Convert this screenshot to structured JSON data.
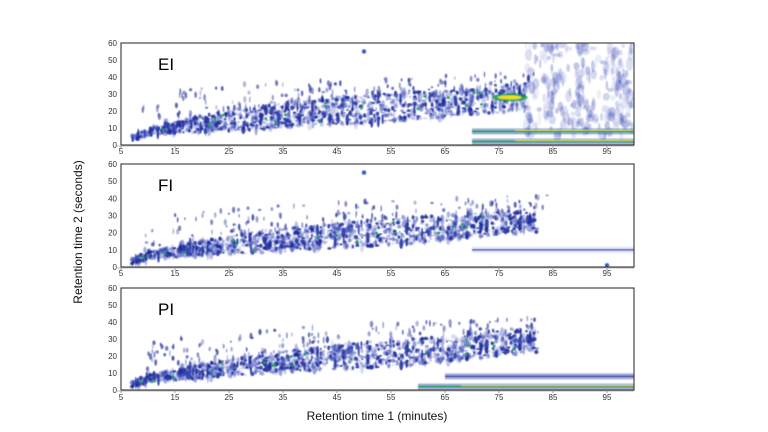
{
  "chart_data": {
    "type": "heatmap",
    "xlabel": "Retention time 1 (minutes)",
    "ylabel": "Retention time 2 (seconds)",
    "xlim": [
      5,
      100
    ],
    "ylim": [
      0,
      60
    ],
    "x_ticks": [
      5,
      15,
      25,
      35,
      45,
      55,
      65,
      75,
      85,
      95
    ],
    "y_ticks": [
      0,
      10,
      20,
      30,
      40,
      50,
      60
    ],
    "grid": false,
    "colormap": [
      "#ffffff",
      "#c7cdf0",
      "#3344b4",
      "#1d2a96",
      "#1ea04a",
      "#e8e020",
      "#e04010"
    ],
    "panels": [
      {
        "label": "EI",
        "band": [
          [
            5,
            0,
            2
          ],
          [
            10,
            6,
            9
          ],
          [
            20,
            9,
            16
          ],
          [
            30,
            11,
            21
          ],
          [
            40,
            13,
            24
          ],
          [
            50,
            15,
            27
          ],
          [
            60,
            17,
            29
          ],
          [
            70,
            20,
            31
          ],
          [
            78,
            22,
            34
          ]
        ],
        "hotspots": [
          {
            "x": 77,
            "y": 28,
            "level": "high"
          },
          {
            "x": 50,
            "y": 55,
            "level": "medium"
          }
        ],
        "baseline_streaks": [
          {
            "x_from": 70,
            "x_to": 100,
            "y": 8,
            "level": "high"
          },
          {
            "x_from": 70,
            "x_to": 100,
            "y": 2,
            "level": "high"
          }
        ]
      },
      {
        "label": "FI",
        "band": [
          [
            5,
            0,
            2
          ],
          [
            10,
            5,
            8
          ],
          [
            20,
            8,
            14
          ],
          [
            30,
            10,
            19
          ],
          [
            40,
            12,
            22
          ],
          [
            50,
            14,
            25
          ],
          [
            60,
            16,
            27
          ],
          [
            70,
            19,
            29
          ],
          [
            80,
            22,
            31
          ]
        ],
        "hotspots": [
          {
            "x": 50,
            "y": 55,
            "level": "medium"
          },
          {
            "x": 95,
            "y": 1,
            "level": "medium"
          }
        ],
        "baseline_streaks": [
          {
            "x_from": 70,
            "x_to": 100,
            "y": 10,
            "level": "low"
          }
        ]
      },
      {
        "label": "PI",
        "band": [
          [
            5,
            0,
            2
          ],
          [
            10,
            5,
            8
          ],
          [
            20,
            8,
            14
          ],
          [
            30,
            11,
            19
          ],
          [
            40,
            13,
            23
          ],
          [
            50,
            15,
            26
          ],
          [
            60,
            17,
            28
          ],
          [
            70,
            20,
            31
          ],
          [
            80,
            24,
            34
          ]
        ],
        "hotspots": [
          {
            "x": 78,
            "y": 29,
            "level": "medium"
          }
        ],
        "baseline_streaks": [
          {
            "x_from": 65,
            "x_to": 100,
            "y": 8,
            "level": "medium"
          },
          {
            "x_from": 60,
            "x_to": 100,
            "y": 2,
            "level": "high"
          }
        ]
      }
    ]
  }
}
